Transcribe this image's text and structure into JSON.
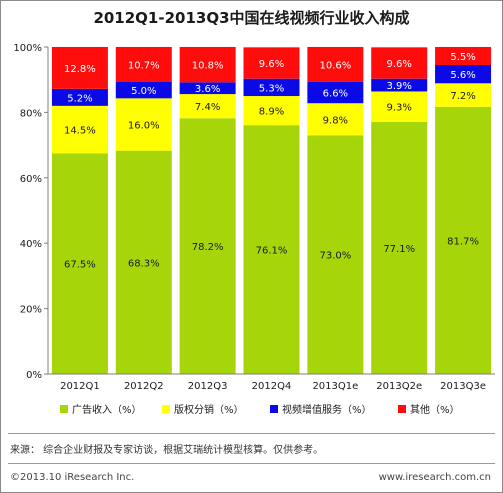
{
  "chart_data": {
    "type": "bar",
    "stacked": true,
    "title": "2012Q1-2013Q3中国在线视频行业收入构成",
    "categories": [
      "2012Q1",
      "2012Q2",
      "2012Q3",
      "2012Q4",
      "2013Q1e",
      "2013Q2e",
      "2013Q3e"
    ],
    "series": [
      {
        "name": "广告收入（%）",
        "color": "#a6d60a",
        "values": [
          67.5,
          68.3,
          78.2,
          76.1,
          73.0,
          77.1,
          81.7
        ]
      },
      {
        "name": "版权分销（%）",
        "color": "#ffff00",
        "values": [
          14.5,
          16.0,
          7.4,
          8.9,
          9.8,
          9.3,
          7.2
        ]
      },
      {
        "name": "视频增值服务（%）",
        "color": "#0a0ae6",
        "values": [
          5.2,
          5.0,
          3.6,
          5.3,
          6.6,
          3.9,
          5.6
        ]
      },
      {
        "name": "其他（%）",
        "color": "#ff0d0d",
        "values": [
          12.8,
          10.7,
          10.8,
          9.6,
          10.6,
          9.6,
          5.5
        ]
      }
    ],
    "value_labels": [
      [
        "67.5%",
        "68.3%",
        "78.2%",
        "76.1%",
        "73.0%",
        "77.1%",
        "81.7%"
      ],
      [
        "14.5%",
        "16.0%",
        "7.4%",
        "8.9%",
        "9.8%",
        "9.3%",
        "7.2%"
      ],
      [
        "5.2%",
        "5.0%",
        "3.6%",
        "5.3%",
        "6.6%",
        "3.9%",
        "5.6%"
      ],
      [
        "12.8%",
        "10.7%",
        "10.8%",
        "9.6%",
        "10.6%",
        "9.6%",
        "5.5%"
      ]
    ],
    "value_label_colors": [
      "#1a1a1a",
      "#1a1a1a",
      "#ffffff",
      "#ffffff"
    ],
    "ylim": [
      0,
      100
    ],
    "yticks": [
      0,
      20,
      40,
      60,
      80,
      100
    ],
    "ytick_labels": [
      "0%",
      "20%",
      "40%",
      "60%",
      "80%",
      "100%"
    ],
    "grid": false,
    "legend_position": "bottom"
  },
  "footer": {
    "source": "来源：  综合企业财报及专家访谈，根据艾瑞统计模型核算。仅供参考。",
    "copyright": "©2013.10 iResearch Inc.",
    "website": "www.iresearch.com.cn"
  }
}
